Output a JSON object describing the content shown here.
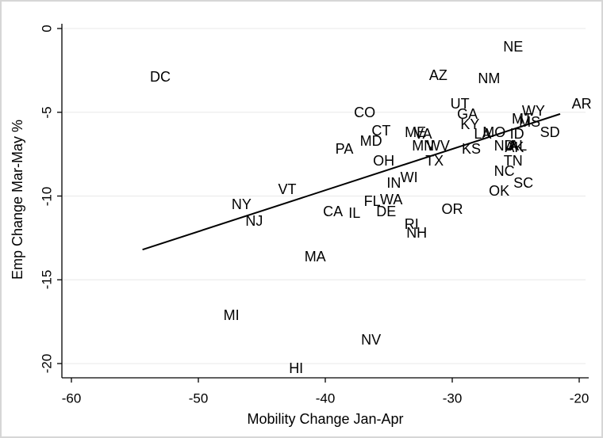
{
  "chart_data": {
    "type": "scatter",
    "title": "",
    "xlabel": "Mobility Change Jan-Apr",
    "ylabel": "Emp Change Mar-May %",
    "xlim": [
      -60,
      -20
    ],
    "ylim": [
      -20,
      0
    ],
    "xticks": [
      -60,
      -50,
      -40,
      -30,
      -20
    ],
    "yticks": [
      0,
      -5,
      -10,
      -15,
      -20
    ],
    "grid": "horizontal-only",
    "legend": "none",
    "marker_style": "state-abbreviation-text",
    "points": [
      {
        "label": "DC",
        "x": -53.0,
        "y": -2.9
      },
      {
        "label": "NE",
        "x": -25.2,
        "y": -1.1
      },
      {
        "label": "AZ",
        "x": -31.1,
        "y": -2.8
      },
      {
        "label": "NM",
        "x": -27.1,
        "y": -3.0
      },
      {
        "label": "AR",
        "x": -19.8,
        "y": -4.5
      },
      {
        "label": "UT",
        "x": -29.4,
        "y": -4.5
      },
      {
        "label": "WY",
        "x": -23.6,
        "y": -4.9
      },
      {
        "label": "CO",
        "x": -36.9,
        "y": -5.0
      },
      {
        "label": "GA",
        "x": -28.8,
        "y": -5.1
      },
      {
        "label": "MT",
        "x": -24.5,
        "y": -5.4
      },
      {
        "label": "MS",
        "x": -23.9,
        "y": -5.6
      },
      {
        "label": "KY",
        "x": -28.6,
        "y": -5.7
      },
      {
        "label": "CT",
        "x": -35.6,
        "y": -6.1
      },
      {
        "label": "ME",
        "x": -32.9,
        "y": -6.2
      },
      {
        "label": "VA",
        "x": -32.3,
        "y": -6.3
      },
      {
        "label": "MO",
        "x": -26.7,
        "y": -6.2
      },
      {
        "label": "SD",
        "x": -22.3,
        "y": -6.2
      },
      {
        "label": "LA",
        "x": -27.6,
        "y": -6.3
      },
      {
        "label": "ID",
        "x": -24.9,
        "y": -6.3
      },
      {
        "label": "MD",
        "x": -36.4,
        "y": -6.7
      },
      {
        "label": "MN",
        "x": -32.3,
        "y": -7.0
      },
      {
        "label": "WV",
        "x": -31.1,
        "y": -7.0
      },
      {
        "label": "PA",
        "x": -38.5,
        "y": -7.2
      },
      {
        "label": "KS",
        "x": -28.5,
        "y": -7.2
      },
      {
        "label": "ND",
        "x": -25.9,
        "y": -7.0
      },
      {
        "label": "IA",
        "x": -25.4,
        "y": -7.0
      },
      {
        "label": "AK",
        "x": -25.1,
        "y": -7.1
      },
      {
        "label": "AL",
        "x": -24.8,
        "y": -7.0
      },
      {
        "label": "OH",
        "x": -35.4,
        "y": -7.9
      },
      {
        "label": "TX",
        "x": -31.4,
        "y": -7.9
      },
      {
        "label": "TN",
        "x": -25.2,
        "y": -7.9
      },
      {
        "label": "NC",
        "x": -25.9,
        "y": -8.5
      },
      {
        "label": "WI",
        "x": -33.4,
        "y": -8.9
      },
      {
        "label": "IN",
        "x": -34.6,
        "y": -9.2
      },
      {
        "label": "SC",
        "x": -24.4,
        "y": -9.2
      },
      {
        "label": "VT",
        "x": -43.0,
        "y": -9.6
      },
      {
        "label": "OK",
        "x": -26.3,
        "y": -9.7
      },
      {
        "label": "WA",
        "x": -34.8,
        "y": -10.2
      },
      {
        "label": "FL",
        "x": -36.3,
        "y": -10.3
      },
      {
        "label": "NY",
        "x": -46.6,
        "y": -10.5
      },
      {
        "label": "CA",
        "x": -39.4,
        "y": -10.9
      },
      {
        "label": "DE",
        "x": -35.2,
        "y": -10.9
      },
      {
        "label": "OR",
        "x": -30.0,
        "y": -10.8
      },
      {
        "label": "IL",
        "x": -37.7,
        "y": -11.0
      },
      {
        "label": "NJ",
        "x": -45.6,
        "y": -11.5
      },
      {
        "label": "RI",
        "x": -33.2,
        "y": -11.7
      },
      {
        "label": "NH",
        "x": -32.8,
        "y": -12.2
      },
      {
        "label": "MA",
        "x": -40.8,
        "y": -13.6
      },
      {
        "label": "MI",
        "x": -47.4,
        "y": -17.1
      },
      {
        "label": "NV",
        "x": -36.4,
        "y": -18.6
      },
      {
        "label": "HI",
        "x": -42.3,
        "y": -20.3
      }
    ],
    "trendline": {
      "x1": -54.4,
      "y1": -13.2,
      "x2": -21.5,
      "y2": -5.1
    },
    "colors": {
      "background": "#ffffff",
      "text": "#000000",
      "axis": "#000000",
      "gridline": "#e8e8e8",
      "trendline": "#000000",
      "frame_border": "#d6d6d6"
    }
  }
}
